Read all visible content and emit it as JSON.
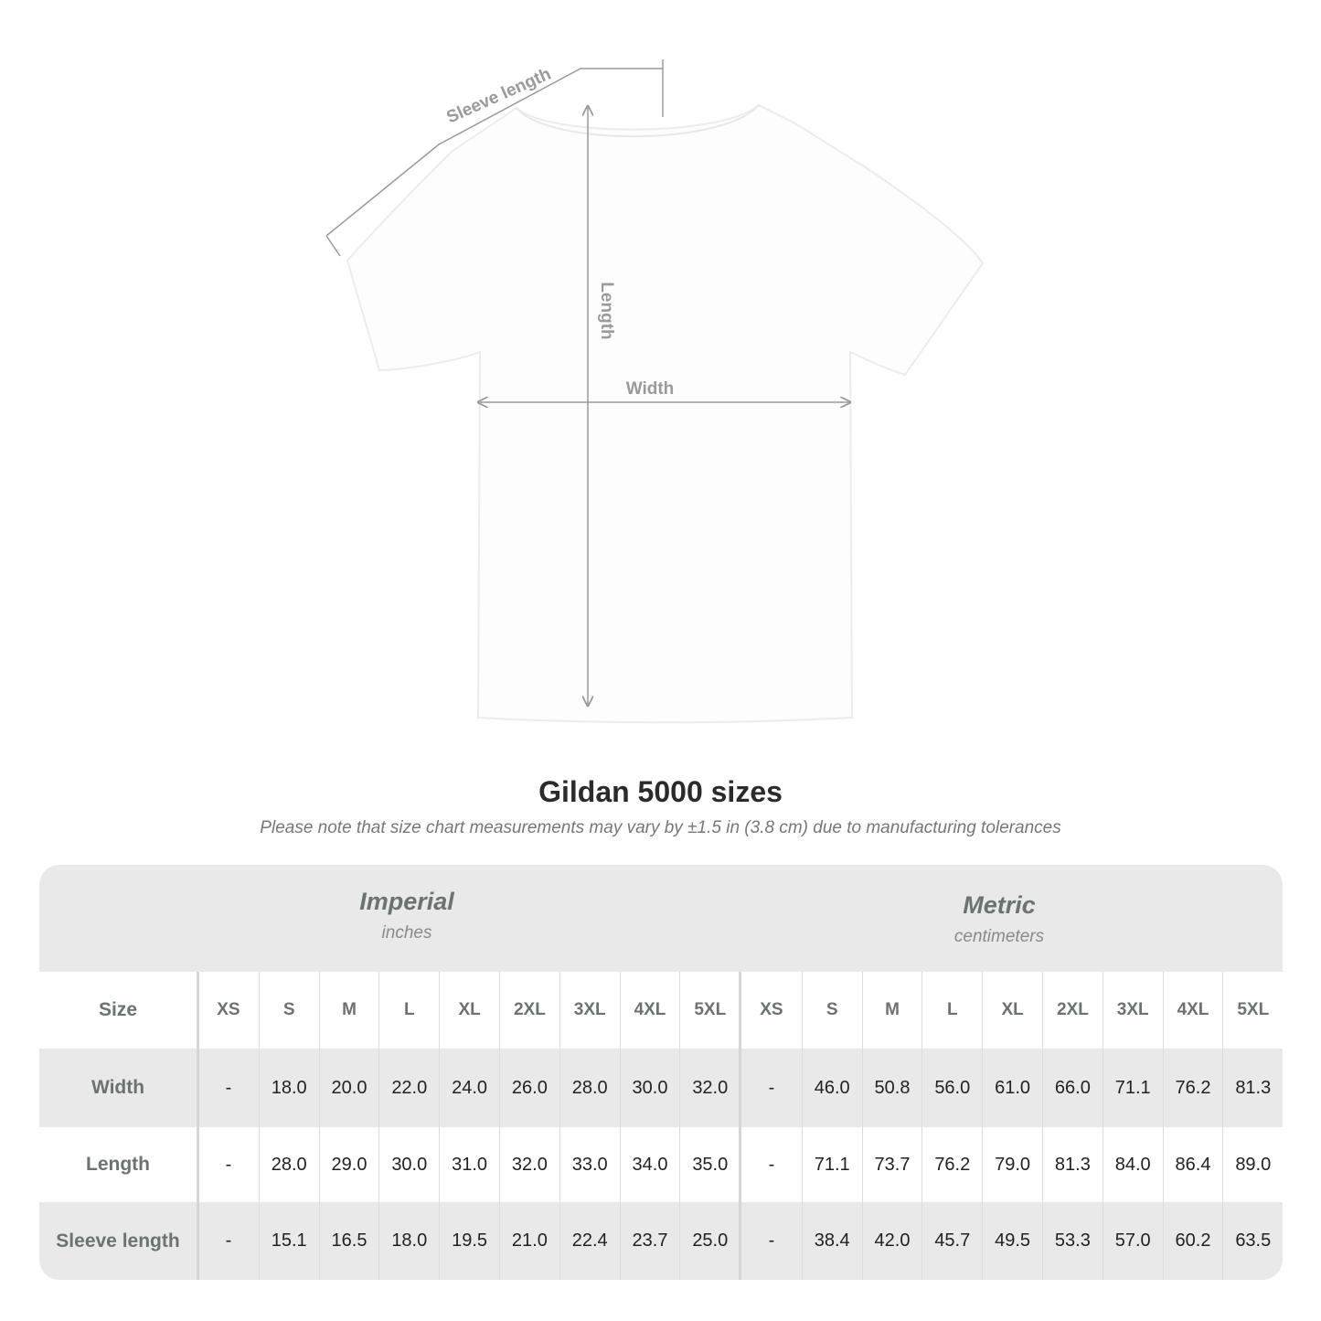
{
  "diagram": {
    "labels": {
      "sleeve": "Sleeve length",
      "length": "Length",
      "width": "Width"
    },
    "line_color": "#9a9a9a"
  },
  "title": "Gildan 5000 sizes",
  "subtitle": "Please note that size chart measurements may vary by ±1.5 in (3.8 cm) due to manufacturing tolerances",
  "table": {
    "imperial": {
      "name": "Imperial",
      "unit": "inches"
    },
    "metric": {
      "name": "Metric",
      "unit": "centimeters"
    },
    "size_label": "Size",
    "sizes": [
      "XS",
      "S",
      "M",
      "L",
      "XL",
      "2XL",
      "3XL",
      "4XL",
      "5XL"
    ],
    "rows": [
      {
        "label": "Width",
        "imperial": [
          "-",
          "18.0",
          "20.0",
          "22.0",
          "24.0",
          "26.0",
          "28.0",
          "30.0",
          "32.0"
        ],
        "metric": [
          "-",
          "46.0",
          "50.8",
          "56.0",
          "61.0",
          "66.0",
          "71.1",
          "76.2",
          "81.3"
        ]
      },
      {
        "label": "Length",
        "imperial": [
          "-",
          "28.0",
          "29.0",
          "30.0",
          "31.0",
          "32.0",
          "33.0",
          "34.0",
          "35.0"
        ],
        "metric": [
          "-",
          "71.1",
          "73.7",
          "76.2",
          "79.0",
          "81.3",
          "84.0",
          "86.4",
          "89.0"
        ]
      },
      {
        "label": "Sleeve length",
        "imperial": [
          "-",
          "15.1",
          "16.5",
          "18.0",
          "19.5",
          "21.0",
          "22.4",
          "23.7",
          "25.0"
        ],
        "metric": [
          "-",
          "38.4",
          "42.0",
          "45.7",
          "49.5",
          "53.3",
          "57.0",
          "60.2",
          "63.5"
        ]
      }
    ],
    "colors": {
      "header_bg": "#e9e9e9",
      "label_text": "#6c7272"
    }
  }
}
